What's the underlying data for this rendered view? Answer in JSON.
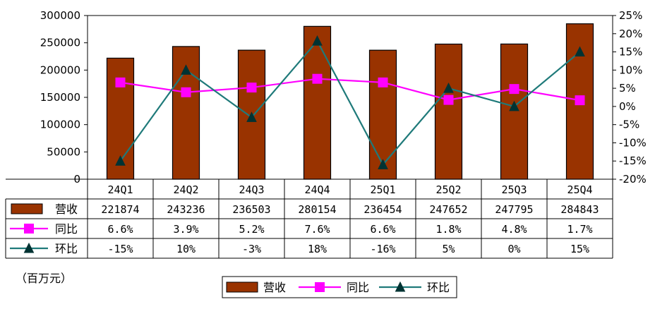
{
  "chart_data": {
    "type": "bar",
    "categories": [
      "24Q1",
      "24Q2",
      "24Q3",
      "24Q4",
      "25Q1",
      "25Q2",
      "25Q3",
      "25Q4"
    ],
    "unit_label": "（百万元）",
    "left_axis": {
      "min": 0,
      "max": 300000,
      "step": 50000,
      "ticks": [
        "0",
        "50000",
        "100000",
        "150000",
        "200000",
        "250000",
        "300000"
      ]
    },
    "right_axis": {
      "min": -20,
      "max": 25,
      "step": 5,
      "ticks": [
        "-20%",
        "-15%",
        "-10%",
        "-5%",
        "0%",
        "5%",
        "10%",
        "15%",
        "20%",
        "25%"
      ]
    },
    "series": [
      {
        "name": "营收",
        "kind": "bar",
        "axis": "left",
        "color": "#993300",
        "values": [
          221874,
          243236,
          236503,
          280154,
          236454,
          247652,
          247795,
          284843
        ],
        "labels": [
          "221874",
          "243236",
          "236503",
          "280154",
          "236454",
          "247652",
          "247795",
          "284843"
        ]
      },
      {
        "name": "同比",
        "kind": "line",
        "axis": "right",
        "color": "#FF00FF",
        "marker": "square",
        "values": [
          6.6,
          3.9,
          5.2,
          7.6,
          6.6,
          1.8,
          4.8,
          1.7
        ],
        "labels": [
          "6.6%",
          "3.9%",
          "5.2%",
          "7.6%",
          "6.6%",
          "1.8%",
          "4.8%",
          "1.7%"
        ]
      },
      {
        "name": "环比",
        "kind": "line",
        "axis": "right",
        "color": "#1F7A7A",
        "marker": "triangle",
        "values": [
          -15,
          10,
          -3,
          18,
          -16,
          5,
          0,
          15
        ],
        "labels": [
          "-15%",
          "10%",
          "-3%",
          "18%",
          "-16%",
          "5%",
          "0%",
          "15%"
        ]
      }
    ],
    "legend": [
      "营收",
      "同比",
      "环比"
    ],
    "legend_position": "bottom-center",
    "grid": false
  }
}
